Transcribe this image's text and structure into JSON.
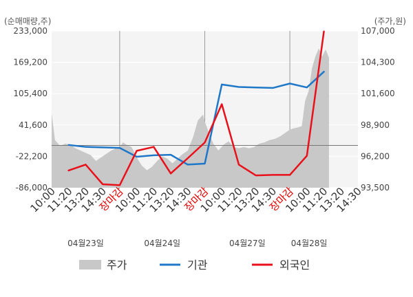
{
  "chart_data": {
    "type": "line",
    "left_unit_label": "(순매매량,주)",
    "right_unit_label": "(주가,원)",
    "left_ticks": [
      "233,000",
      "169,200",
      "105,400",
      "41,600",
      "-22,200",
      "-86,000"
    ],
    "left_range": [
      -86000,
      233000
    ],
    "right_ticks": [
      "107,000",
      "104,300",
      "101,600",
      "98,900",
      "96,200",
      "93,500"
    ],
    "right_range": [
      93500,
      107000
    ],
    "x_ticks": [
      {
        "text": "10:00",
        "color": "#333333"
      },
      {
        "text": "11:20",
        "color": "#333333"
      },
      {
        "text": "13:20",
        "color": "#333333"
      },
      {
        "text": "14:30",
        "color": "#333333"
      },
      {
        "text": "장마감",
        "color": "#e60000"
      },
      {
        "text": "10:00",
        "color": "#333333"
      },
      {
        "text": "11:20",
        "color": "#333333"
      },
      {
        "text": "13:20",
        "color": "#333333"
      },
      {
        "text": "14:30",
        "color": "#333333"
      },
      {
        "text": "장마감",
        "color": "#e60000"
      },
      {
        "text": "10:00",
        "color": "#333333"
      },
      {
        "text": "11:20",
        "color": "#333333"
      },
      {
        "text": "13:20",
        "color": "#333333"
      },
      {
        "text": "14:30",
        "color": "#333333"
      },
      {
        "text": "장마감",
        "color": "#e60000"
      },
      {
        "text": "10:00",
        "color": "#333333"
      },
      {
        "text": "11:20",
        "color": "#333333"
      },
      {
        "text": "13:20",
        "color": "#333333"
      },
      {
        "text": "14:30",
        "color": "#333333"
      }
    ],
    "dates": [
      "04월23일",
      "04월24일",
      "04월27일",
      "04월28일"
    ],
    "series": [
      {
        "name": "주가",
        "kind": "area",
        "axis": "right",
        "color": "#c8c8c8",
        "x": [
          0.0,
          0.2,
          0.5,
          0.8,
          1.1,
          1.4,
          1.7,
          2.0,
          2.3,
          2.6,
          2.9,
          3.2,
          3.5,
          3.8,
          4.0,
          4.2,
          4.4,
          4.7,
          5.0,
          5.3,
          5.6,
          5.9,
          6.2,
          6.5,
          6.8,
          7.1,
          7.4,
          7.7,
          8.0,
          8.3,
          8.6,
          8.9,
          9.0,
          9.2,
          9.5,
          9.8,
          10.1,
          10.4,
          10.7,
          11.0,
          11.3,
          11.6,
          11.9,
          12.2,
          12.5,
          12.8,
          13.1,
          13.4,
          13.7,
          14.0,
          14.2,
          14.5,
          14.7,
          14.9,
          15.1,
          15.3,
          15.5,
          15.7,
          15.9,
          16.1,
          16.3
        ],
        "values": [
          99900,
          97600,
          97100,
          97300,
          97200,
          96900,
          96700,
          96500,
          96300,
          95800,
          96100,
          96400,
          96700,
          96900,
          97000,
          97400,
          97200,
          97000,
          96100,
          95400,
          95000,
          95300,
          95800,
          96200,
          96000,
          95600,
          96000,
          96400,
          96700,
          97800,
          99300,
          99800,
          99200,
          98400,
          97300,
          96700,
          97200,
          97500,
          97000,
          96900,
          97000,
          96900,
          97000,
          97300,
          97400,
          97600,
          97700,
          97900,
          98200,
          98500,
          98600,
          98700,
          98800,
          101000,
          101800,
          103800,
          104800,
          105500,
          104800,
          105400,
          104700
        ]
      },
      {
        "name": "기관",
        "kind": "line",
        "axis": "left",
        "color": "#1f77c8",
        "x": [
          1.0,
          2.0,
          3.0,
          4.0,
          5.0,
          6.0,
          7.0,
          8.0,
          9.0,
          10.0,
          11.0,
          12.0,
          13.0,
          14.0,
          15.0,
          16.0
        ],
        "values": [
          1000,
          -3000,
          -4000,
          -5000,
          -23000,
          -20000,
          -19000,
          -39000,
          -37000,
          124000,
          119000,
          118000,
          117000,
          126000,
          118000,
          150000
        ]
      },
      {
        "name": "외국인",
        "kind": "line",
        "axis": "left",
        "color": "#e8101a",
        "x": [
          1.0,
          2.0,
          3.0,
          4.0,
          5.0,
          6.0,
          7.0,
          8.0,
          9.0,
          10.0,
          11.0,
          12.0,
          13.0,
          14.0,
          15.0,
          16.0
        ],
        "values": [
          -51000,
          -39000,
          -79000,
          -81000,
          -11000,
          -3000,
          -57000,
          -26000,
          6000,
          84000,
          -39000,
          -61000,
          -60000,
          -60000,
          -21000,
          232000
        ]
      }
    ]
  }
}
